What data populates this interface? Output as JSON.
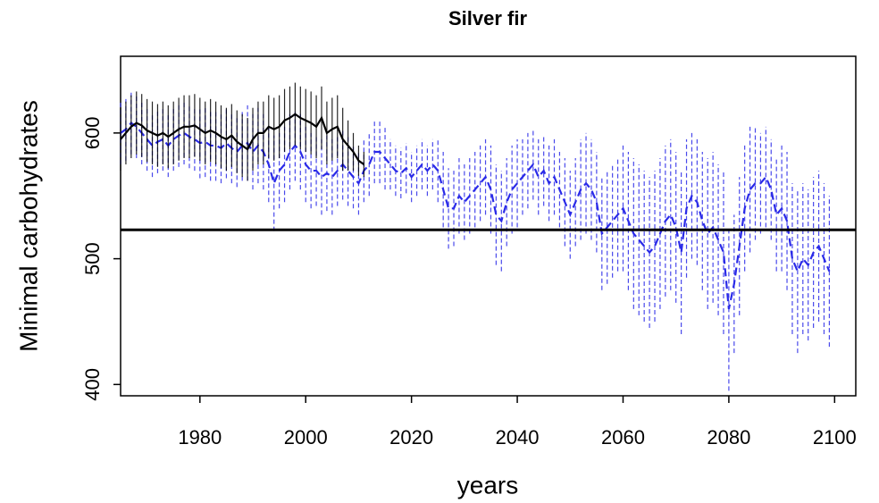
{
  "chart_data": {
    "type": "errorline",
    "title": "Silver fir",
    "x_label": "years",
    "y_label": "Minimal carbohydrates",
    "xlim": [
      1965,
      2104
    ],
    "ylim": [
      391,
      661
    ],
    "xticks": [
      1980,
      2000,
      2020,
      2040,
      2060,
      2080,
      2100
    ],
    "yticks": [
      400,
      500,
      600
    ],
    "hline": 523,
    "series": [
      {
        "color": "#000000",
        "dashed": false,
        "x": [
          1965,
          1966,
          1967,
          1968,
          1969,
          1970,
          1971,
          1972,
          1973,
          1974,
          1975,
          1976,
          1977,
          1978,
          1979,
          1980,
          1981,
          1982,
          1983,
          1984,
          1985,
          1986,
          1987,
          1988,
          1989,
          1990,
          1991,
          1992,
          1993,
          1994,
          1995,
          1996,
          1997,
          1998,
          1999,
          2000,
          2001,
          2002,
          2003,
          2004,
          2005,
          2006,
          2007,
          2008,
          2009,
          2010,
          2011
        ],
        "values": [
          595,
          600,
          605,
          608,
          606,
          602,
          600,
          598,
          600,
          597,
          600,
          603,
          605,
          605,
          606,
          603,
          600,
          602,
          600,
          597,
          595,
          598,
          593,
          590,
          587,
          595,
          600,
          600,
          605,
          603,
          605,
          610,
          612,
          615,
          612,
          610,
          608,
          605,
          612,
          600,
          603,
          605,
          595,
          590,
          585,
          578,
          575
        ],
        "errors": [
          25,
          25,
          25,
          25,
          25,
          25,
          25,
          25,
          25,
          25,
          25,
          25,
          25,
          25,
          25,
          25,
          25,
          25,
          25,
          25,
          25,
          25,
          25,
          25,
          25,
          25,
          25,
          25,
          25,
          25,
          25,
          25,
          25,
          25,
          25,
          25,
          25,
          25,
          25,
          25,
          25,
          25,
          25,
          20,
          15,
          12,
          10
        ]
      },
      {
        "color": "#2a2ae8",
        "dashed": true,
        "x": [
          1965,
          1966,
          1967,
          1968,
          1969,
          1970,
          1971,
          1972,
          1973,
          1974,
          1975,
          1976,
          1977,
          1978,
          1979,
          1980,
          1981,
          1982,
          1983,
          1984,
          1985,
          1986,
          1987,
          1988,
          1989,
          1990,
          1991,
          1992,
          1993,
          1994,
          1995,
          1996,
          1997,
          1998,
          1999,
          2000,
          2001,
          2002,
          2003,
          2004,
          2005,
          2006,
          2007,
          2008,
          2009,
          2010,
          2011,
          2012,
          2013,
          2014,
          2015,
          2016,
          2017,
          2018,
          2019,
          2020,
          2021,
          2022,
          2023,
          2024,
          2025,
          2026,
          2027,
          2028,
          2029,
          2030,
          2031,
          2032,
          2033,
          2034,
          2035,
          2036,
          2037,
          2038,
          2039,
          2040,
          2041,
          2042,
          2043,
          2044,
          2045,
          2046,
          2047,
          2048,
          2049,
          2050,
          2051,
          2052,
          2053,
          2054,
          2055,
          2056,
          2057,
          2058,
          2059,
          2060,
          2061,
          2062,
          2063,
          2064,
          2065,
          2066,
          2067,
          2068,
          2069,
          2070,
          2071,
          2072,
          2073,
          2074,
          2075,
          2076,
          2077,
          2078,
          2079,
          2080,
          2081,
          2082,
          2083,
          2084,
          2085,
          2086,
          2087,
          2088,
          2089,
          2090,
          2091,
          2092,
          2093,
          2094,
          2095,
          2096,
          2097,
          2098,
          2099
        ],
        "values": [
          600,
          603,
          608,
          605,
          600,
          595,
          590,
          593,
          595,
          590,
          595,
          598,
          600,
          597,
          595,
          592,
          593,
          590,
          590,
          588,
          592,
          588,
          585,
          590,
          592,
          585,
          590,
          585,
          575,
          560,
          570,
          575,
          585,
          590,
          585,
          575,
          570,
          570,
          565,
          568,
          565,
          570,
          575,
          570,
          565,
          560,
          570,
          575,
          585,
          585,
          580,
          575,
          570,
          568,
          572,
          565,
          570,
          575,
          570,
          575,
          570,
          555,
          540,
          540,
          550,
          545,
          550,
          555,
          560,
          565,
          555,
          535,
          530,
          545,
          555,
          560,
          565,
          570,
          575,
          565,
          570,
          560,
          565,
          555,
          545,
          535,
          545,
          555,
          560,
          555,
          545,
          520,
          525,
          530,
          535,
          540,
          530,
          520,
          515,
          510,
          505,
          510,
          520,
          530,
          535,
          525,
          505,
          540,
          550,
          545,
          530,
          520,
          525,
          515,
          505,
          460,
          480,
          510,
          540,
          555,
          560,
          560,
          565,
          555,
          535,
          540,
          530,
          500,
          490,
          500,
          495,
          505,
          510,
          500,
          490
        ],
        "errors": [
          25,
          25,
          25,
          25,
          25,
          25,
          25,
          25,
          25,
          25,
          25,
          25,
          25,
          25,
          25,
          28,
          28,
          28,
          28,
          28,
          28,
          28,
          28,
          28,
          30,
          30,
          30,
          30,
          30,
          38,
          30,
          30,
          30,
          28,
          30,
          30,
          30,
          28,
          30,
          30,
          30,
          28,
          28,
          28,
          25,
          25,
          25,
          25,
          25,
          25,
          25,
          20,
          20,
          20,
          20,
          20,
          20,
          20,
          20,
          20,
          25,
          30,
          32,
          30,
          30,
          30,
          30,
          30,
          30,
          30,
          35,
          40,
          40,
          35,
          35,
          35,
          30,
          30,
          28,
          30,
          28,
          30,
          30,
          30,
          35,
          35,
          35,
          40,
          40,
          40,
          40,
          45,
          45,
          45,
          45,
          50,
          55,
          60,
          60,
          60,
          60,
          60,
          60,
          60,
          60,
          60,
          65,
          55,
          50,
          50,
          55,
          60,
          60,
          60,
          65,
          65,
          55,
          55,
          50,
          50,
          45,
          40,
          40,
          40,
          45,
          50,
          55,
          60,
          65,
          60,
          60,
          60,
          60,
          60,
          60
        ]
      }
    ]
  }
}
